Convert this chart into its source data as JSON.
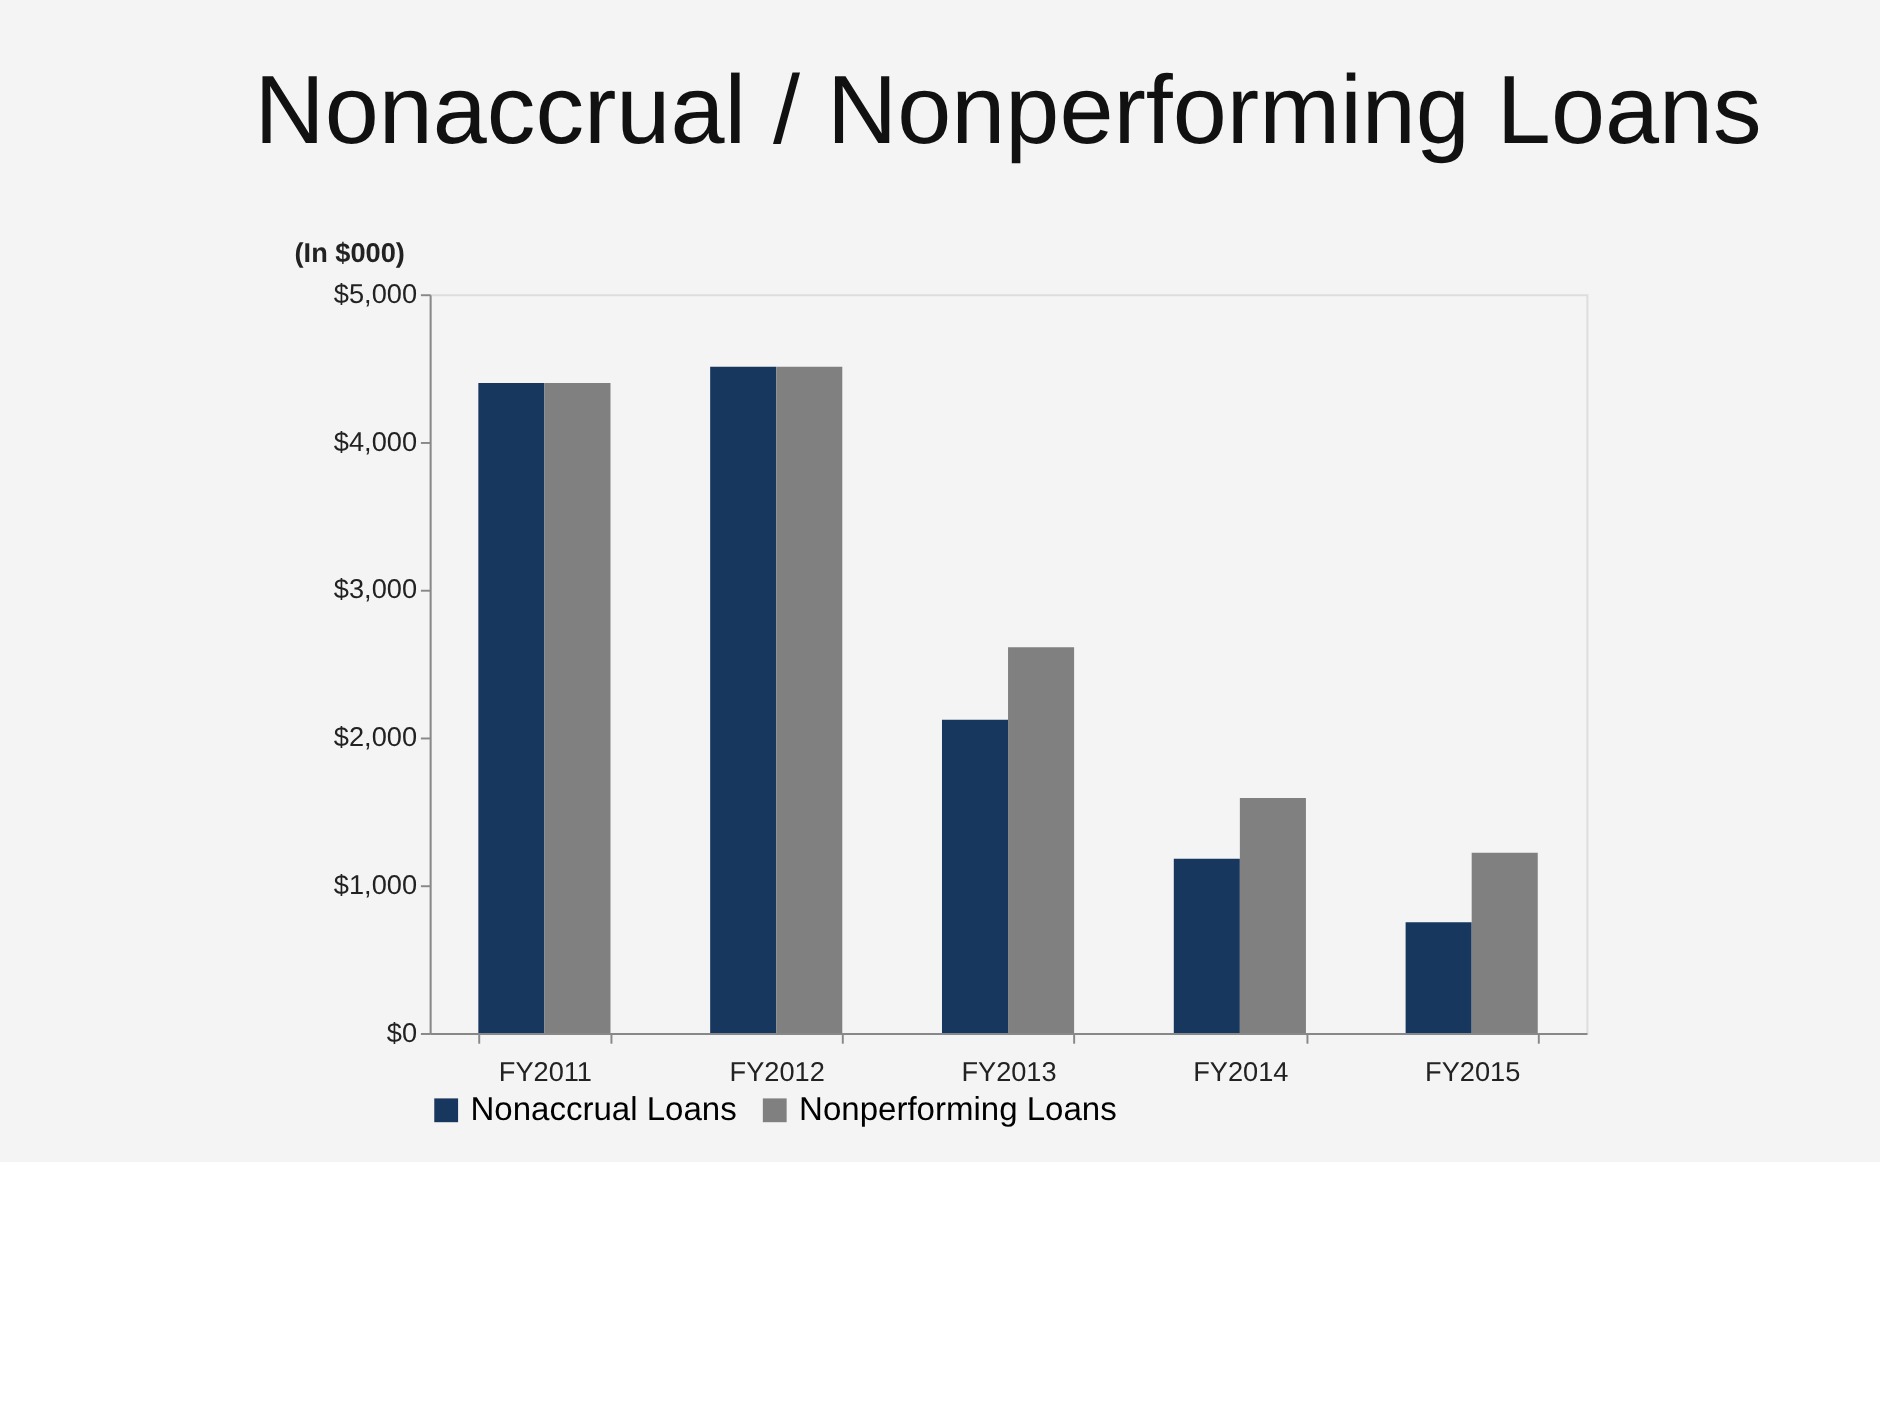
{
  "chart_data": {
    "type": "bar",
    "title": "Nonaccrual / Nonperforming Loans",
    "ylabel": "(In $000)",
    "categories": [
      "FY2011",
      "FY2012",
      "FY2013",
      "FY2014",
      "FY2015"
    ],
    "series": [
      {
        "name": "Nonaccrual Loans",
        "color": "#17375e",
        "values": [
          4400,
          4510,
          2120,
          1180,
          750
        ]
      },
      {
        "name": "Nonperforming Loans",
        "color": "#808080",
        "values": [
          4400,
          4510,
          2610,
          1590,
          1220
        ]
      }
    ],
    "ylim": [
      0,
      5000
    ],
    "yticks": [
      {
        "value": 0,
        "label": "$0"
      },
      {
        "value": 1000,
        "label": "$1,000"
      },
      {
        "value": 2000,
        "label": "$2,000"
      },
      {
        "value": 3000,
        "label": "$3,000"
      },
      {
        "value": 4000,
        "label": "$4,000"
      },
      {
        "value": 5000,
        "label": "$5,000"
      }
    ],
    "grid": false,
    "legend": "bottom"
  }
}
